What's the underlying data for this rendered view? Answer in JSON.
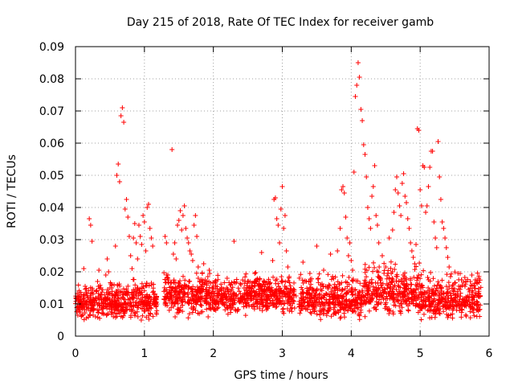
{
  "chart_data": {
    "type": "scatter",
    "title": "Day 215 of 2018, Rate Of TEC Index for receiver gamb",
    "xlabel": "GPS time / hours",
    "ylabel": "ROTI / TECUs",
    "xlim": [
      0,
      6
    ],
    "ylim": [
      0,
      0.09
    ],
    "x_ticks": [
      0,
      1,
      2,
      3,
      4,
      5,
      6
    ],
    "x_tick_labels": [
      "0",
      "1",
      "2",
      "3",
      "4",
      "5",
      "6"
    ],
    "y_ticks": [
      0,
      0.01,
      0.02,
      0.03,
      0.04,
      0.05,
      0.06,
      0.07,
      0.08,
      0.09
    ],
    "y_tick_labels": [
      "0",
      "0.01",
      "0.02",
      "0.03",
      "0.04",
      "0.05",
      "0.06",
      "0.07",
      "0.08",
      "0.09"
    ],
    "grid": true,
    "marker": "+",
    "color": "#ff0000",
    "series": [
      {
        "name": "ROTI",
        "points": [
          [
            0.04,
            0.011
          ],
          [
            0.06,
            0.0095
          ],
          [
            0.08,
            0.013
          ],
          [
            0.1,
            0.0085
          ],
          [
            0.12,
            0.021
          ],
          [
            0.14,
            0.0155
          ],
          [
            0.16,
            0.009
          ],
          [
            0.18,
            0.012
          ],
          [
            0.2,
            0.0365
          ],
          [
            0.22,
            0.0345
          ],
          [
            0.24,
            0.0295
          ],
          [
            0.26,
            0.0115
          ],
          [
            0.28,
            0.0105
          ],
          [
            0.3,
            0.014
          ],
          [
            0.32,
            0.017
          ],
          [
            0.34,
            0.0205
          ],
          [
            0.36,
            0.0125
          ],
          [
            0.38,
            0.0095
          ],
          [
            0.4,
            0.0085
          ],
          [
            0.42,
            0.012
          ],
          [
            0.44,
            0.019
          ],
          [
            0.46,
            0.024
          ],
          [
            0.48,
            0.02
          ],
          [
            0.5,
            0.015
          ],
          [
            0.52,
            0.0075
          ],
          [
            0.54,
            0.0105
          ],
          [
            0.56,
            0.016
          ],
          [
            0.58,
            0.028
          ],
          [
            0.6,
            0.05
          ],
          [
            0.62,
            0.0535
          ],
          [
            0.64,
            0.048
          ],
          [
            0.66,
            0.0685
          ],
          [
            0.68,
            0.071
          ],
          [
            0.7,
            0.0665
          ],
          [
            0.72,
            0.0395
          ],
          [
            0.74,
            0.0425
          ],
          [
            0.76,
            0.037
          ],
          [
            0.78,
            0.031
          ],
          [
            0.8,
            0.025
          ],
          [
            0.82,
            0.021
          ],
          [
            0.84,
            0.0305
          ],
          [
            0.86,
            0.035
          ],
          [
            0.88,
            0.029
          ],
          [
            0.9,
            0.024
          ],
          [
            0.92,
            0.0345
          ],
          [
            0.94,
            0.031
          ],
          [
            0.96,
            0.0285
          ],
          [
            0.98,
            0.0375
          ],
          [
            1.0,
            0.0355
          ],
          [
            1.02,
            0.0265
          ],
          [
            1.04,
            0.04
          ],
          [
            1.06,
            0.041
          ],
          [
            1.08,
            0.0335
          ],
          [
            1.1,
            0.0305
          ],
          [
            1.12,
            0.028
          ],
          [
            1.3,
            0.031
          ],
          [
            1.32,
            0.029
          ],
          [
            1.34,
            0.019
          ],
          [
            1.36,
            0.0135
          ],
          [
            1.38,
            0.0165
          ],
          [
            1.4,
            0.058
          ],
          [
            1.42,
            0.0255
          ],
          [
            1.44,
            0.029
          ],
          [
            1.46,
            0.024
          ],
          [
            1.48,
            0.0345
          ],
          [
            1.5,
            0.036
          ],
          [
            1.52,
            0.039
          ],
          [
            1.54,
            0.033
          ],
          [
            1.56,
            0.0375
          ],
          [
            1.58,
            0.0405
          ],
          [
            1.6,
            0.0335
          ],
          [
            1.62,
            0.0305
          ],
          [
            1.64,
            0.029
          ],
          [
            1.66,
            0.0265
          ],
          [
            1.68,
            0.0255
          ],
          [
            1.7,
            0.0235
          ],
          [
            1.72,
            0.0345
          ],
          [
            1.74,
            0.0375
          ],
          [
            1.76,
            0.031
          ],
          [
            1.78,
            0.0215
          ],
          [
            1.8,
            0.017
          ],
          [
            1.82,
            0.0155
          ],
          [
            1.84,
            0.0195
          ],
          [
            1.86,
            0.0225
          ],
          [
            1.88,
            0.0175
          ],
          [
            1.9,
            0.0145
          ],
          [
            1.92,
            0.0185
          ],
          [
            1.94,
            0.0205
          ],
          [
            1.96,
            0.0165
          ],
          [
            1.98,
            0.0125
          ],
          [
            2.0,
            0.0155
          ],
          [
            2.1,
            0.0145
          ],
          [
            2.2,
            0.018
          ],
          [
            2.3,
            0.0295
          ],
          [
            2.4,
            0.016
          ],
          [
            2.5,
            0.0135
          ],
          [
            2.6,
            0.0195
          ],
          [
            2.7,
            0.026
          ],
          [
            2.8,
            0.017
          ],
          [
            2.86,
            0.0235
          ],
          [
            2.88,
            0.0425
          ],
          [
            2.9,
            0.043
          ],
          [
            2.92,
            0.0365
          ],
          [
            2.94,
            0.0345
          ],
          [
            2.96,
            0.029
          ],
          [
            2.98,
            0.0395
          ],
          [
            3.0,
            0.0465
          ],
          [
            3.02,
            0.0335
          ],
          [
            3.04,
            0.0375
          ],
          [
            3.06,
            0.0265
          ],
          [
            3.08,
            0.0215
          ],
          [
            3.1,
            0.0185
          ],
          [
            3.2,
            0.0125
          ],
          [
            3.3,
            0.023
          ],
          [
            3.4,
            0.0195
          ],
          [
            3.5,
            0.028
          ],
          [
            3.6,
            0.0205
          ],
          [
            3.7,
            0.0255
          ],
          [
            3.8,
            0.0265
          ],
          [
            3.84,
            0.0335
          ],
          [
            3.86,
            0.0455
          ],
          [
            3.88,
            0.0465
          ],
          [
            3.9,
            0.0445
          ],
          [
            3.92,
            0.037
          ],
          [
            3.94,
            0.0305
          ],
          [
            3.96,
            0.025
          ],
          [
            3.98,
            0.029
          ],
          [
            4.0,
            0.0235
          ],
          [
            4.02,
            0.0205
          ],
          [
            4.04,
            0.051
          ],
          [
            4.06,
            0.0745
          ],
          [
            4.08,
            0.078
          ],
          [
            4.1,
            0.085
          ],
          [
            4.12,
            0.0805
          ],
          [
            4.14,
            0.0705
          ],
          [
            4.16,
            0.067
          ],
          [
            4.18,
            0.0595
          ],
          [
            4.2,
            0.0565
          ],
          [
            4.22,
            0.0495
          ],
          [
            4.24,
            0.04
          ],
          [
            4.26,
            0.0365
          ],
          [
            4.28,
            0.0335
          ],
          [
            4.3,
            0.0435
          ],
          [
            4.32,
            0.0465
          ],
          [
            4.34,
            0.053
          ],
          [
            4.36,
            0.0375
          ],
          [
            4.38,
            0.0345
          ],
          [
            4.4,
            0.029
          ],
          [
            4.45,
            0.025
          ],
          [
            4.5,
            0.0215
          ],
          [
            4.55,
            0.0305
          ],
          [
            4.6,
            0.033
          ],
          [
            4.62,
            0.0385
          ],
          [
            4.64,
            0.0455
          ],
          [
            4.66,
            0.0495
          ],
          [
            4.68,
            0.0445
          ],
          [
            4.7,
            0.0405
          ],
          [
            4.72,
            0.0375
          ],
          [
            4.74,
            0.0475
          ],
          [
            4.76,
            0.0505
          ],
          [
            4.78,
            0.0435
          ],
          [
            4.8,
            0.0415
          ],
          [
            4.82,
            0.0365
          ],
          [
            4.84,
            0.0335
          ],
          [
            4.86,
            0.029
          ],
          [
            4.88,
            0.0265
          ],
          [
            4.9,
            0.0245
          ],
          [
            4.92,
            0.0225
          ],
          [
            4.94,
            0.0285
          ],
          [
            4.96,
            0.0645
          ],
          [
            4.98,
            0.064
          ],
          [
            5.0,
            0.0455
          ],
          [
            5.02,
            0.0405
          ],
          [
            5.04,
            0.053
          ],
          [
            5.06,
            0.0525
          ],
          [
            5.08,
            0.0385
          ],
          [
            5.1,
            0.0405
          ],
          [
            5.12,
            0.0465
          ],
          [
            5.14,
            0.0525
          ],
          [
            5.16,
            0.0575
          ],
          [
            5.18,
            0.0575
          ],
          [
            5.2,
            0.0355
          ],
          [
            5.22,
            0.0305
          ],
          [
            5.24,
            0.0275
          ],
          [
            5.26,
            0.0605
          ],
          [
            5.28,
            0.0495
          ],
          [
            5.3,
            0.0425
          ],
          [
            5.32,
            0.0355
          ],
          [
            5.34,
            0.0335
          ],
          [
            5.36,
            0.0305
          ],
          [
            5.38,
            0.0275
          ],
          [
            5.4,
            0.0245
          ],
          [
            5.42,
            0.0215
          ],
          [
            5.44,
            0.0185
          ],
          [
            5.5,
            0.0165
          ],
          [
            5.55,
            0.0195
          ],
          [
            5.6,
            0.0175
          ],
          [
            5.65,
            0.0155
          ],
          [
            5.7,
            0.0145
          ],
          [
            5.75,
            0.019
          ],
          [
            5.8,
            0.0175
          ],
          [
            5.85,
            0.018
          ]
        ]
      }
    ],
    "background_band": {
      "density_points_per_hour": 420,
      "gap_hours": [
        [
          1.18,
          1.28
        ],
        [
          3.18,
          3.24
        ]
      ],
      "segments": [
        {
          "x": [
            0.0,
            1.18
          ],
          "y_min": 0.004,
          "y_max": 0.019,
          "y_mean": 0.0105
        },
        {
          "x": [
            1.28,
            3.18
          ],
          "y_min": 0.005,
          "y_max": 0.021,
          "y_mean": 0.0125
        },
        {
          "x": [
            3.24,
            4.2
          ],
          "y_min": 0.004,
          "y_max": 0.021,
          "y_mean": 0.0115
        },
        {
          "x": [
            4.2,
            5.0
          ],
          "y_min": 0.005,
          "y_max": 0.025,
          "y_mean": 0.0135
        },
        {
          "x": [
            5.0,
            5.88
          ],
          "y_min": 0.004,
          "y_max": 0.022,
          "y_mean": 0.0115
        }
      ]
    }
  }
}
